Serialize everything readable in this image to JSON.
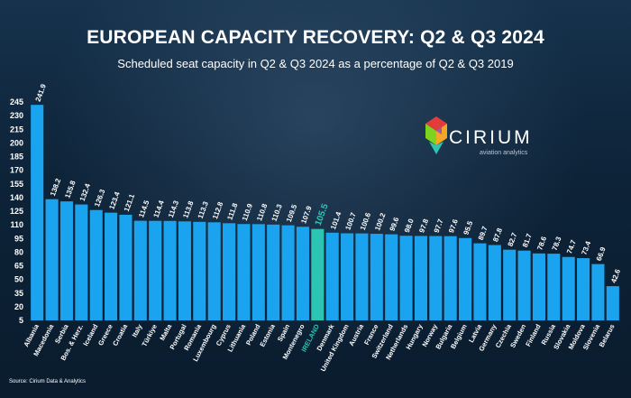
{
  "title": "EUROPEAN CAPACITY RECOVERY: Q2 & Q3 2024",
  "subtitle": "Scheduled seat capacity in Q2 & Q3 2024 as a percentage of Q2 & Q3 2019",
  "source": "Source: Cirium Data & Analytics",
  "logo": {
    "name": "CIRIUM",
    "tagline": "aviation analytics"
  },
  "colors": {
    "bar": "#1aa3ee",
    "highlight_bar": "#2cc5b4",
    "highlight_label": "#2cc5b4",
    "text": "#ffffff"
  },
  "chart_data": {
    "type": "bar",
    "categories": [
      "Albania",
      "Macedonia",
      "Serbia",
      "Bos. & Herz.",
      "Iceland",
      "Greece",
      "Croatia",
      "Italy",
      "Türkiye",
      "Malta",
      "Portugal",
      "Romania",
      "Luxembourg",
      "Cyprus",
      "Lithuania",
      "Poland",
      "Estonia",
      "Spain",
      "Montenegro",
      "IRELAND",
      "Denmark",
      "United Kingdom",
      "Austria",
      "France",
      "Switzerland",
      "Netherlands",
      "Hungary",
      "Norway",
      "Bulgaria",
      "Belgium",
      "Latvia",
      "Germany",
      "Czechia",
      "Sweden",
      "Finland",
      "Russia",
      "Slovakia",
      "Moldova",
      "Slovenia",
      "Belarus"
    ],
    "values": [
      241.9,
      138.2,
      135.8,
      132.4,
      126.3,
      123.4,
      121.1,
      114.5,
      114.4,
      114.3,
      113.8,
      113.3,
      112.8,
      111.8,
      110.9,
      110.8,
      110.3,
      109.5,
      107.9,
      105.5,
      101.4,
      100.7,
      100.6,
      100.2,
      99.6,
      98.0,
      97.8,
      97.7,
      97.6,
      95.5,
      89.7,
      87.8,
      82.7,
      81.7,
      78.6,
      78.3,
      74.7,
      73.4,
      66.9,
      42.6
    ],
    "value_labels": [
      "241.9",
      "138.2",
      "135.8",
      "132.4",
      "126.3",
      "123.4",
      "121.1",
      "114.5",
      "114.4",
      "114.3",
      "113.8",
      "113.3",
      "112.8",
      "111.8",
      "110.9",
      "110.8",
      "110.3",
      "109.5",
      "107.9",
      "105.5",
      "101.4",
      "100.7",
      "100.6",
      "100.2",
      "99.6",
      "98.0",
      "97.8",
      "97.7",
      "97.6",
      "95.5",
      "89.7",
      "87.8",
      "82.7",
      "81.7",
      "78.6",
      "78.3",
      "74.7",
      "73.4",
      "66.9",
      "42.6"
    ],
    "highlight": "IRELAND",
    "yticks": [
      5,
      20,
      35,
      50,
      65,
      80,
      95,
      110,
      125,
      140,
      155,
      170,
      185,
      200,
      215,
      230,
      245
    ],
    "ylim": [
      5,
      250
    ],
    "grid": false,
    "legend": "none"
  }
}
